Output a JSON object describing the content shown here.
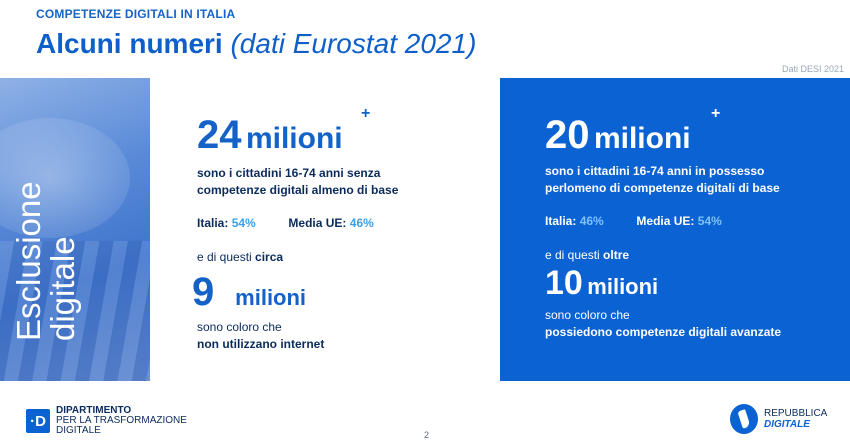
{
  "header": {
    "kicker": "COMPETENZE DIGITALI IN ITALIA",
    "title_bold": "Alcuni numeri",
    "title_light": "(dati Eurostat 2021)",
    "source_note": "Dati DESI 2021"
  },
  "side": {
    "line1": "Esclusione",
    "line2": "digitale"
  },
  "left_stat": {
    "number": "24",
    "unit": "milioni",
    "plus": "+",
    "desc_line1": "sono i cittadini 16-74 anni senza",
    "desc_line2": "competenze digitali almeno di base",
    "italia_label": "Italia:",
    "italia_value": "54%",
    "ue_label": "Media UE:",
    "ue_value": "46%",
    "connector_pre": "e di questi ",
    "connector_emph": "circa",
    "sub_number": "9",
    "sub_unit": "milioni",
    "sub_line1": "sono coloro che",
    "sub_line2": "non utilizzano internet"
  },
  "right_stat": {
    "number": "20",
    "unit": "milioni",
    "plus": "+",
    "desc_line1": "sono i cittadini 16-74 anni in possesso",
    "desc_line2": "perlomeno di competenze digitali di base",
    "italia_label": "Italia:",
    "italia_value": "46%",
    "ue_label": "Media UE:",
    "ue_value": "54%",
    "connector_pre": "e di questi ",
    "connector_emph": "oltre",
    "sub_number": "10",
    "sub_unit": "milioni",
    "sub_line1": "sono coloro che",
    "sub_line2": "possiedono competenze digitali avanzate"
  },
  "footer": {
    "dtd_mark": "·D",
    "dtd_line1": "DIPARTIMENTO",
    "dtd_line2": "PER LA TRASFORMAZIONE",
    "dtd_line3": "DIGITALE",
    "page_number": "2",
    "rd_line1": "REPUBBLICA",
    "rd_line2": "DIGITALE"
  },
  "colors": {
    "accent": "#1462c8",
    "panel": "#0b62d2",
    "highlight": "#3aa0e8"
  }
}
